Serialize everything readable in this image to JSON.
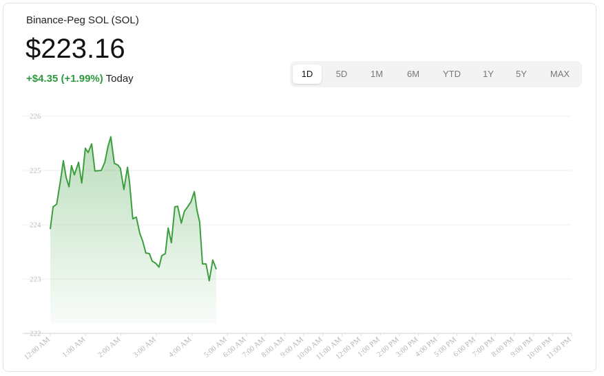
{
  "header": {
    "title": "Binance-Peg SOL (SOL)",
    "price": "$223.16",
    "change": "+$4.35 (+1.99%)",
    "period": "Today"
  },
  "tabs": {
    "items": [
      "1D",
      "5D",
      "1M",
      "6M",
      "YTD",
      "1Y",
      "5Y",
      "MAX"
    ],
    "selected": 0
  },
  "chart_data": {
    "type": "area",
    "x": [
      0,
      0.08,
      0.18,
      0.29,
      0.37,
      0.45,
      0.53,
      0.6,
      0.68,
      0.8,
      0.89,
      0.99,
      1.07,
      1.17,
      1.26,
      1.44,
      1.54,
      1.63,
      1.71,
      1.81,
      1.91,
      1.98,
      2.08,
      2.18,
      2.24,
      2.33,
      2.43,
      2.53,
      2.61,
      2.7,
      2.8,
      2.88,
      2.98,
      3.07,
      3.15,
      3.25,
      3.33,
      3.42,
      3.52,
      3.6,
      3.7,
      3.79,
      3.87,
      3.97,
      4.07,
      4.14,
      4.22,
      4.3,
      4.4,
      4.49,
      4.59,
      4.69
    ],
    "values": [
      223.92,
      224.33,
      224.38,
      224.82,
      225.18,
      224.87,
      224.7,
      225.09,
      224.92,
      225.15,
      224.77,
      225.41,
      225.33,
      225.49,
      224.99,
      225.0,
      225.15,
      225.44,
      225.62,
      225.13,
      225.1,
      225.04,
      224.65,
      225.06,
      224.78,
      224.11,
      224.14,
      223.84,
      223.7,
      223.48,
      223.47,
      223.33,
      223.29,
      223.22,
      223.43,
      223.47,
      223.94,
      223.67,
      224.33,
      224.34,
      224.03,
      224.25,
      224.32,
      224.42,
      224.61,
      224.28,
      224.05,
      223.28,
      223.28,
      222.97,
      223.35,
      223.18
    ],
    "color": "#3a9e3f",
    "xlim": [
      0,
      23
    ],
    "xticks": [
      {
        "value": 0,
        "label": "12:00 AM"
      },
      {
        "value": 1,
        "label": "1:00 AM"
      },
      {
        "value": 2,
        "label": "2:00 AM"
      },
      {
        "value": 3,
        "label": "3:00 AM"
      },
      {
        "value": 4,
        "label": "4:00 AM"
      },
      {
        "value": 5,
        "label": "5:00 AM"
      },
      {
        "value": 6,
        "label": "6:00 AM"
      },
      {
        "value": 7,
        "label": "7:00 AM"
      },
      {
        "value": 8,
        "label": "8:00 AM"
      },
      {
        "value": 9,
        "label": "9:00 AM"
      },
      {
        "value": 10,
        "label": "10:00 AM"
      },
      {
        "value": 11,
        "label": "11:00 AM"
      },
      {
        "value": 12,
        "label": "12:00 PM"
      },
      {
        "value": 13,
        "label": "1:00 PM"
      },
      {
        "value": 14,
        "label": "2:00 PM"
      },
      {
        "value": 15,
        "label": "3:00 PM"
      },
      {
        "value": 16,
        "label": "4:00 PM"
      },
      {
        "value": 17,
        "label": "5:00 PM"
      },
      {
        "value": 18,
        "label": "6:00 PM"
      },
      {
        "value": 19,
        "label": "7:00 PM"
      },
      {
        "value": 20,
        "label": "8:00 PM"
      },
      {
        "value": 21,
        "label": "9:00 PM"
      },
      {
        "value": 22,
        "label": "10:00 PM"
      },
      {
        "value": 23,
        "label": "11:00 PM"
      }
    ],
    "ylim": [
      222,
      226
    ],
    "yticks": [
      222,
      223,
      224,
      225,
      226
    ],
    "grid": true
  }
}
